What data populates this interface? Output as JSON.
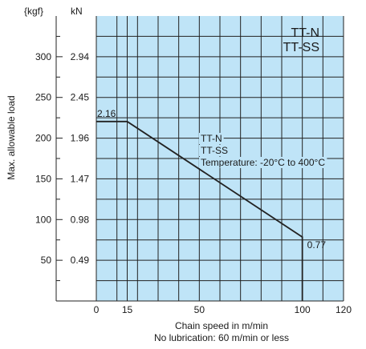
{
  "chart_data": {
    "type": "line",
    "units": {
      "kgf": "{kgf}",
      "kn": "kN"
    },
    "legend_box": [
      "TT-N",
      "TT-SS"
    ],
    "series": [
      {
        "name": "TT-N / TT-SS",
        "points": [
          [
            0,
            2.16
          ],
          [
            15,
            2.16
          ],
          [
            100,
            0.77
          ],
          [
            100,
            0
          ]
        ],
        "point_labels": [
          "2.16",
          "",
          "0.77",
          ""
        ]
      }
    ],
    "annotation": [
      "TT-N",
      "TT-SS",
      "Temperature: -20°C to 400°C"
    ],
    "x": {
      "label": "Chain speed in m/min",
      "sublabel": "No lubrication: 60 m/min or less",
      "range": [
        0,
        120
      ],
      "ticks": [
        0,
        15,
        50,
        100,
        120
      ],
      "tick_labels": [
        "0",
        "15",
        "50",
        "100",
        "120"
      ],
      "gridlines": [
        0,
        10,
        15,
        20,
        30,
        40,
        50,
        60,
        70,
        80,
        90,
        100,
        110,
        120
      ]
    },
    "y": {
      "label": "Max. allowable load",
      "range_kN": [
        0,
        3.43
      ],
      "ticks_kN": [
        0.49,
        0.98,
        1.47,
        1.96,
        2.45,
        2.94
      ],
      "tick_labels_kN": [
        "0.49",
        "0.98",
        "1.47",
        "1.96",
        "2.45",
        "2.94"
      ],
      "tick_labels_kgf": [
        "50",
        "100",
        "150",
        "200",
        "250",
        "300"
      ],
      "gridlines_kN": [
        0.245,
        0.49,
        0.735,
        0.98,
        1.225,
        1.47,
        1.715,
        1.96,
        2.205,
        2.45,
        2.695,
        2.94,
        3.185
      ]
    },
    "grid": true,
    "colors": {
      "plot_bg": "#bfe4f7",
      "grid": "#222222",
      "line": "#222222"
    }
  }
}
